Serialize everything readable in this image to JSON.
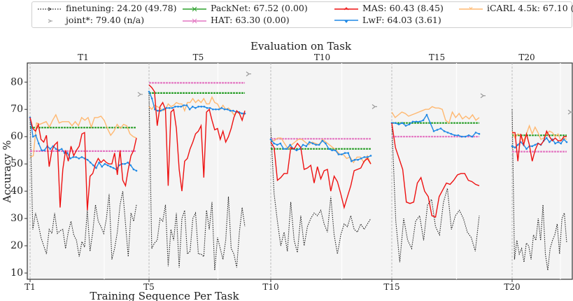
{
  "chart_data": {
    "type": "line",
    "title": "Evaluation on Task",
    "xlabel": "Training Sequence Per Task",
    "ylabel": "Accuracy %",
    "ylim": [
      7.7,
      87
    ],
    "yticks": [
      10,
      20,
      30,
      40,
      50,
      60,
      70,
      80
    ],
    "grid": true,
    "legend_position": "top",
    "panels": [
      "T1",
      "T5",
      "T10",
      "T15",
      "T20"
    ],
    "xticks": [
      "T1",
      "T5",
      "T10",
      "T15",
      "T20"
    ],
    "legend": [
      {
        "key": "finetuning",
        "label": "finetuning: 24.20 (49.78)",
        "color": "#222222",
        "style": "dotted"
      },
      {
        "key": "joint",
        "label": "joint*: 79.40 (n/a)",
        "color": "#999999",
        "style": "marker"
      },
      {
        "key": "packnet",
        "label": "PackNet: 67.52 (0.00)",
        "color": "#2ca02c",
        "style": "solid"
      },
      {
        "key": "hat",
        "label": "HAT: 63.30 (0.00)",
        "color": "#e377c2",
        "style": "solid"
      },
      {
        "key": "mas",
        "label": "MAS: 60.43 (8.45)",
        "color": "#ee1111",
        "style": "solid"
      },
      {
        "key": "lwf",
        "label": "LwF: 64.03 (3.61)",
        "color": "#1e88e5",
        "style": "solid"
      },
      {
        "key": "icarl",
        "label": "iCARL 4.5k: 67.10 (1.53)",
        "color": "#ffb870",
        "style": "solid"
      }
    ],
    "series_by_panel": [
      {
        "panel": "T1",
        "joint": 75.5,
        "packnet": [
          63.3,
          63.3
        ],
        "hat": [
          54.7,
          54.7
        ],
        "icarl": [
          52.5,
          53,
          65,
          64.5,
          65,
          65.5,
          63.5,
          66,
          68,
          65,
          65.5,
          65.5,
          65.5,
          64,
          65.5,
          64,
          67,
          66,
          67,
          63.5,
          67,
          67,
          67.5,
          66,
          63,
          60.5,
          62,
          64.5,
          63,
          64.5,
          64,
          61,
          60,
          59.5
        ],
        "lwf": [
          67,
          60,
          60.5,
          57.5,
          55,
          55,
          56.5,
          55.5,
          56.5,
          55.5,
          55,
          55.5,
          54,
          54,
          52,
          52.5,
          52.5,
          52,
          52.5,
          52,
          51.5,
          50.5,
          49.5,
          48.5,
          50.5,
          49,
          50,
          49.5,
          49,
          48.5,
          48,
          49.5,
          50,
          50,
          50.5,
          49.5,
          48,
          47.5
        ],
        "mas": [
          67,
          63,
          62,
          64.5,
          59,
          58,
          60.5,
          49,
          55,
          57,
          58,
          34,
          48,
          55,
          51,
          56.5,
          53,
          55,
          56.5,
          61,
          61.5,
          33,
          45.5,
          46.5,
          50,
          52,
          50.5,
          51.5,
          50.5,
          50,
          50,
          54,
          46,
          55,
          44,
          42,
          48,
          53,
          55,
          59.5
        ],
        "finetuning": [
          67,
          26,
          32,
          28,
          23,
          20,
          17,
          26,
          24.5,
          32,
          24.5,
          25.5,
          26,
          19,
          25,
          29,
          24,
          22,
          16,
          21.5,
          19.5,
          33,
          18,
          25,
          35,
          29,
          27,
          24.5,
          30,
          39,
          15,
          19,
          25,
          35,
          40,
          28,
          16,
          32,
          29,
          35
        ]
      },
      {
        "panel": "T5",
        "joint": 83,
        "packnet": [
          76,
          76
        ],
        "hat": [
          79.7,
          79.7
        ],
        "icarl": [
          71,
          70,
          71.5,
          71,
          70.5,
          69.5,
          70,
          72,
          71,
          71.5,
          72.5,
          72,
          72,
          69.5,
          72.5,
          72.5,
          74,
          72.5,
          73.5,
          72.5,
          74,
          72,
          72,
          74.5,
          72.5,
          72,
          70,
          71.5,
          70,
          70.5,
          69.5,
          68,
          69,
          68.5,
          68.5,
          68
        ],
        "lwf": [
          76.5,
          74,
          70,
          69.5,
          69.5,
          70,
          70.5,
          70.5,
          70.5,
          71,
          71,
          71,
          71.5,
          71.5,
          70,
          71,
          70.5,
          71,
          71,
          71,
          70.5,
          70.5,
          70,
          70,
          70,
          70.5,
          70,
          70,
          69.5,
          69.5,
          69,
          69,
          68.5,
          68.5
        ],
        "mas": [
          79,
          78,
          76.5,
          64,
          71,
          72.5,
          70,
          42,
          69,
          70,
          63,
          48,
          40,
          51,
          52,
          55.5,
          58,
          61,
          62,
          64,
          45,
          69,
          70,
          66,
          62.5,
          63,
          59,
          62,
          58,
          60,
          63,
          67,
          69.5,
          68.5,
          66,
          69.5
        ],
        "finetuning": [
          76,
          19,
          21,
          22,
          30,
          29,
          35,
          12.5,
          26,
          22,
          32,
          12,
          30,
          33,
          17,
          18,
          30,
          32,
          17,
          17,
          16,
          33,
          26,
          36,
          11,
          23,
          19,
          15,
          22,
          38,
          19,
          17,
          12,
          25,
          34,
          27
        ]
      },
      {
        "panel": "T10",
        "joint": 71,
        "packnet": [
          55.5,
          55.5
        ],
        "hat": [
          59.2,
          59.2
        ],
        "icarl": [
          59,
          58.5,
          59.5,
          59.5,
          57.5,
          55.5,
          57,
          58,
          59,
          59,
          58,
          57,
          58,
          57.5,
          57,
          59,
          58,
          57,
          56,
          55,
          53.5,
          53.5,
          52,
          52.5,
          50.5,
          52.5,
          52.5,
          50.5,
          53,
          50
        ],
        "lwf": [
          59,
          57.5,
          57,
          57.5,
          55.5,
          55.5,
          57,
          55.5,
          55,
          55.5,
          57,
          56.5,
          58,
          57.5,
          57,
          57,
          58.5,
          57.5,
          55.5,
          55,
          55,
          53.5,
          53.5,
          54,
          54,
          51,
          51.5,
          51.5,
          52,
          52.5,
          52.5,
          53
        ],
        "mas": [
          58,
          56,
          44,
          45,
          46.5,
          46.5,
          56,
          55.5,
          57.5,
          56,
          48,
          48.5,
          49.5,
          43,
          49,
          44.5,
          47.5,
          48,
          40,
          45.5,
          43.5,
          39,
          34,
          38,
          42,
          47.5,
          48,
          48.5,
          51,
          52,
          50
        ],
        "finetuning": [
          63,
          39,
          29,
          20,
          25,
          18,
          36,
          22,
          17.5,
          31,
          20,
          27,
          30,
          32,
          31,
          33,
          28,
          25,
          38,
          24,
          17,
          24,
          28,
          27,
          31,
          26,
          25,
          28,
          26,
          28,
          30
        ]
      },
      {
        "panel": "T15",
        "joint": 75,
        "packnet": [
          65,
          65
        ],
        "hat": [
          60,
          60
        ],
        "icarl": [
          69,
          67,
          68,
          69,
          68.5,
          67.5,
          68,
          68.5,
          69,
          69.5,
          70,
          70,
          71,
          70.5,
          70.5,
          70,
          66,
          65,
          69,
          67,
          68.5,
          66.5,
          67.5,
          66.5,
          68,
          66,
          67
        ],
        "lwf": [
          65,
          65,
          64.5,
          65,
          64,
          64.5,
          65.5,
          65.5,
          65.5,
          66,
          68,
          65,
          62,
          62.5,
          63,
          62,
          61.5,
          61,
          60.5,
          60.5,
          60,
          60,
          60.5,
          60,
          61.5,
          61
        ],
        "mas": [
          65,
          56,
          52,
          48,
          36,
          35.5,
          36,
          43,
          45,
          40,
          38,
          31,
          30.5,
          38,
          40.5,
          43,
          42.5,
          44,
          46,
          46.5,
          46.5,
          44,
          43.5,
          42.5,
          42
        ],
        "finetuning": [
          65,
          29,
          14,
          30,
          22,
          19,
          29,
          31,
          22,
          35,
          37,
          27,
          24,
          36,
          41,
          26,
          31,
          33,
          30,
          25,
          23,
          18,
          31
        ]
      },
      {
        "panel": "T20",
        "joint": 69,
        "packnet": [
          60.5,
          60.5
        ],
        "hat": [
          54.5,
          54.5
        ],
        "icarl": [
          62,
          59.5,
          61,
          60.5,
          58.5,
          61,
          64,
          61,
          63.5,
          61.5,
          59,
          59.5,
          61,
          62,
          61.5,
          60,
          61,
          58.5,
          59.5,
          59
        ],
        "lwf": [
          56.5,
          56,
          57,
          58,
          57,
          55.5,
          56.5,
          56.5,
          57,
          57.5,
          57,
          58.5,
          59.5,
          58,
          59,
          57.5,
          58,
          57.5,
          59,
          58
        ],
        "mas": [
          61.5,
          61.5,
          51,
          61,
          57,
          61,
          57,
          51,
          55,
          57.5,
          57,
          58.5,
          62,
          60,
          58.5,
          59.5,
          58.5,
          58.5,
          60,
          60
        ],
        "finetuning": [
          70,
          15,
          22,
          17,
          19,
          14,
          21,
          20,
          15,
          24,
          22,
          30,
          22,
          35,
          17,
          11,
          19,
          22,
          24,
          28,
          17,
          30,
          32,
          21
        ]
      }
    ]
  }
}
